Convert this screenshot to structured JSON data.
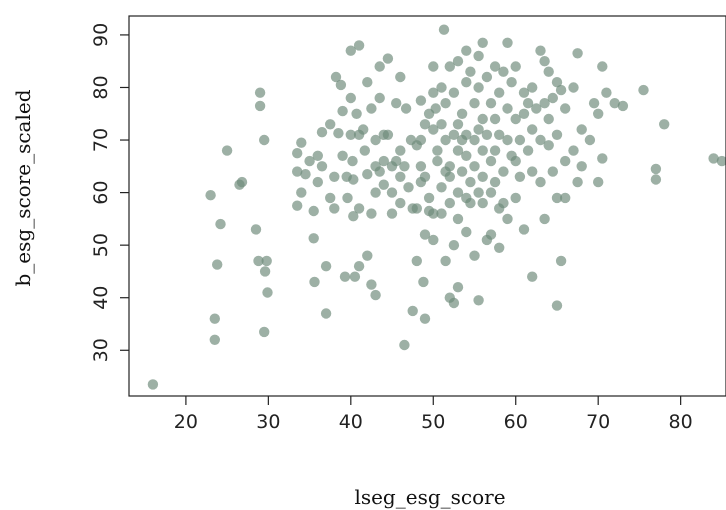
{
  "chart_data": {
    "type": "scatter",
    "title": "",
    "xlabel": "lseg_esg_score",
    "ylabel": "b_esg_score_scaled",
    "xlim": [
      13.1,
      85.5
    ],
    "ylim": [
      21.3,
      93.6
    ],
    "xticks": [
      20,
      30,
      40,
      50,
      60,
      70,
      80
    ],
    "yticks": [
      30,
      40,
      50,
      60,
      70,
      80,
      90
    ],
    "grid": false,
    "legend": "none",
    "point_color": "#6f8a7a",
    "points": [
      [
        16,
        23.5
      ],
      [
        23,
        59.5
      ],
      [
        23.5,
        36
      ],
      [
        23.5,
        32
      ],
      [
        23.8,
        46.3
      ],
      [
        24.2,
        54
      ],
      [
        25,
        68
      ],
      [
        26.5,
        61.5
      ],
      [
        26.8,
        62
      ],
      [
        28.5,
        53
      ],
      [
        28.8,
        47
      ],
      [
        29,
        79
      ],
      [
        29,
        76.5
      ],
      [
        29.5,
        33.5
      ],
      [
        29.5,
        70
      ],
      [
        29.6,
        45
      ],
      [
        29.8,
        47
      ],
      [
        29.9,
        41
      ],
      [
        33.5,
        57.5
      ],
      [
        33.5,
        64
      ],
      [
        33.5,
        67.5
      ],
      [
        34,
        69.5
      ],
      [
        34,
        60
      ],
      [
        34.5,
        63.5
      ],
      [
        35,
        66
      ],
      [
        35.5,
        51.3
      ],
      [
        35.5,
        56.5
      ],
      [
        35.6,
        43
      ],
      [
        36,
        67
      ],
      [
        36,
        62
      ],
      [
        36.5,
        65
      ],
      [
        36.5,
        71.5
      ],
      [
        37,
        46
      ],
      [
        37,
        37
      ],
      [
        37.5,
        73
      ],
      [
        37.5,
        59
      ],
      [
        38,
        57
      ],
      [
        38,
        63
      ],
      [
        38.2,
        82
      ],
      [
        38.5,
        71.3
      ],
      [
        38.8,
        80.5
      ],
      [
        39,
        75.5
      ],
      [
        39,
        67
      ],
      [
        39.3,
        44
      ],
      [
        39.5,
        63
      ],
      [
        39.6,
        59
      ],
      [
        40,
        78
      ],
      [
        40,
        87
      ],
      [
        40,
        71
      ],
      [
        40.2,
        66
      ],
      [
        40.3,
        62.5
      ],
      [
        40.3,
        55.5
      ],
      [
        40.5,
        44
      ],
      [
        40.7,
        75
      ],
      [
        41,
        88
      ],
      [
        41,
        71
      ],
      [
        41,
        57
      ],
      [
        41,
        46
      ],
      [
        41.5,
        72
      ],
      [
        41.7,
        68
      ],
      [
        42,
        81
      ],
      [
        42,
        63.5
      ],
      [
        42,
        48
      ],
      [
        42.5,
        76
      ],
      [
        42.5,
        56
      ],
      [
        42.5,
        42.5
      ],
      [
        43,
        70
      ],
      [
        43,
        65
      ],
      [
        43,
        60
      ],
      [
        43,
        40.5
      ],
      [
        43.5,
        84
      ],
      [
        43.5,
        64
      ],
      [
        43.5,
        78
      ],
      [
        44,
        71
      ],
      [
        44,
        66
      ],
      [
        44,
        61.5
      ],
      [
        44.5,
        85.5
      ],
      [
        44.5,
        71
      ],
      [
        45,
        65
      ],
      [
        45,
        60
      ],
      [
        45,
        56
      ],
      [
        45.5,
        77
      ],
      [
        45.5,
        66
      ],
      [
        46,
        82
      ],
      [
        46,
        68
      ],
      [
        46,
        63
      ],
      [
        46,
        58
      ],
      [
        46.5,
        31
      ],
      [
        46.5,
        65
      ],
      [
        46.7,
        76
      ],
      [
        47,
        61
      ],
      [
        47.3,
        70
      ],
      [
        47.5,
        57
      ],
      [
        47.5,
        37.5
      ],
      [
        48,
        69
      ],
      [
        48,
        57
      ],
      [
        48,
        47
      ],
      [
        48.5,
        77.5
      ],
      [
        48.5,
        70
      ],
      [
        48.5,
        65
      ],
      [
        48.5,
        62
      ],
      [
        48.8,
        43
      ],
      [
        49,
        73
      ],
      [
        49,
        52
      ],
      [
        49,
        63
      ],
      [
        49,
        36
      ],
      [
        49.5,
        56.5
      ],
      [
        49.5,
        75
      ],
      [
        49.5,
        59
      ],
      [
        50,
        79
      ],
      [
        50,
        84
      ],
      [
        50,
        72
      ],
      [
        50,
        56
      ],
      [
        50,
        51
      ],
      [
        50.3,
        76
      ],
      [
        50.5,
        66
      ],
      [
        50.5,
        68
      ],
      [
        51,
        80
      ],
      [
        51,
        73
      ],
      [
        51,
        61
      ],
      [
        51,
        56
      ],
      [
        51.3,
        91
      ],
      [
        51.5,
        70
      ],
      [
        51.5,
        77
      ],
      [
        51.5,
        64
      ],
      [
        51.5,
        47
      ],
      [
        52,
        84
      ],
      [
        52,
        65
      ],
      [
        52,
        63
      ],
      [
        52,
        58
      ],
      [
        52,
        40
      ],
      [
        52.5,
        79
      ],
      [
        52.5,
        71
      ],
      [
        52.5,
        50
      ],
      [
        52.5,
        39
      ],
      [
        53,
        85
      ],
      [
        53,
        73
      ],
      [
        53,
        68
      ],
      [
        53,
        60
      ],
      [
        53,
        55
      ],
      [
        53,
        42
      ],
      [
        53.5,
        75
      ],
      [
        53.5,
        70
      ],
      [
        53.5,
        64
      ],
      [
        54,
        87
      ],
      [
        54,
        81
      ],
      [
        54,
        71
      ],
      [
        54,
        67
      ],
      [
        54,
        59
      ],
      [
        54,
        52.5
      ],
      [
        54.5,
        83
      ],
      [
        54.5,
        62
      ],
      [
        54.5,
        58
      ],
      [
        55,
        77
      ],
      [
        55,
        70
      ],
      [
        55,
        65
      ],
      [
        55,
        48
      ],
      [
        55.5,
        86
      ],
      [
        55.5,
        80
      ],
      [
        55.5,
        72
      ],
      [
        55.5,
        60
      ],
      [
        55.5,
        39.5
      ],
      [
        56,
        88.5
      ],
      [
        56,
        74
      ],
      [
        56,
        68
      ],
      [
        56,
        63
      ],
      [
        56,
        58
      ],
      [
        56.5,
        82
      ],
      [
        56.5,
        71
      ],
      [
        56.5,
        51
      ],
      [
        57,
        77
      ],
      [
        57,
        66
      ],
      [
        57,
        60
      ],
      [
        57,
        52
      ],
      [
        57.5,
        84
      ],
      [
        57.5,
        74
      ],
      [
        57.5,
        68
      ],
      [
        57.5,
        62
      ],
      [
        58,
        79
      ],
      [
        58,
        71
      ],
      [
        58,
        57
      ],
      [
        58,
        49.5
      ],
      [
        58.5,
        83
      ],
      [
        58.5,
        64
      ],
      [
        58.5,
        58
      ],
      [
        59,
        88.5
      ],
      [
        59,
        76
      ],
      [
        59,
        70
      ],
      [
        59,
        55
      ],
      [
        59.5,
        81
      ],
      [
        59.5,
        67
      ],
      [
        60,
        84
      ],
      [
        60,
        74
      ],
      [
        60,
        66
      ],
      [
        60,
        59
      ],
      [
        60.5,
        70
      ],
      [
        60.5,
        63
      ],
      [
        61,
        79
      ],
      [
        61,
        75
      ],
      [
        61,
        53
      ],
      [
        61.5,
        77
      ],
      [
        61.5,
        68
      ],
      [
        62,
        80
      ],
      [
        62,
        72
      ],
      [
        62,
        64
      ],
      [
        62,
        44
      ],
      [
        62.5,
        76
      ],
      [
        63,
        87
      ],
      [
        63,
        70
      ],
      [
        63,
        62
      ],
      [
        63.5,
        85
      ],
      [
        63.5,
        77
      ],
      [
        63.5,
        55
      ],
      [
        64,
        83
      ],
      [
        64,
        74
      ],
      [
        64,
        69
      ],
      [
        64.5,
        78
      ],
      [
        64.5,
        64
      ],
      [
        65,
        81
      ],
      [
        65,
        71
      ],
      [
        65,
        59
      ],
      [
        65,
        38.5
      ],
      [
        65.5,
        79.5
      ],
      [
        65.5,
        47
      ],
      [
        66,
        76
      ],
      [
        66,
        66
      ],
      [
        66,
        59
      ],
      [
        67,
        80
      ],
      [
        67,
        68
      ],
      [
        67.5,
        86.5
      ],
      [
        67.5,
        62
      ],
      [
        68,
        72
      ],
      [
        68,
        65
      ],
      [
        69,
        70
      ],
      [
        69.5,
        77
      ],
      [
        70,
        75
      ],
      [
        70,
        62
      ],
      [
        70.5,
        84
      ],
      [
        70.5,
        66.5
      ],
      [
        71,
        79
      ],
      [
        72,
        77
      ],
      [
        73,
        76.5
      ],
      [
        75.5,
        79.5
      ],
      [
        77,
        64.5
      ],
      [
        77,
        62.5
      ],
      [
        78,
        73
      ],
      [
        84,
        66.5
      ],
      [
        85,
        66
      ]
    ]
  }
}
